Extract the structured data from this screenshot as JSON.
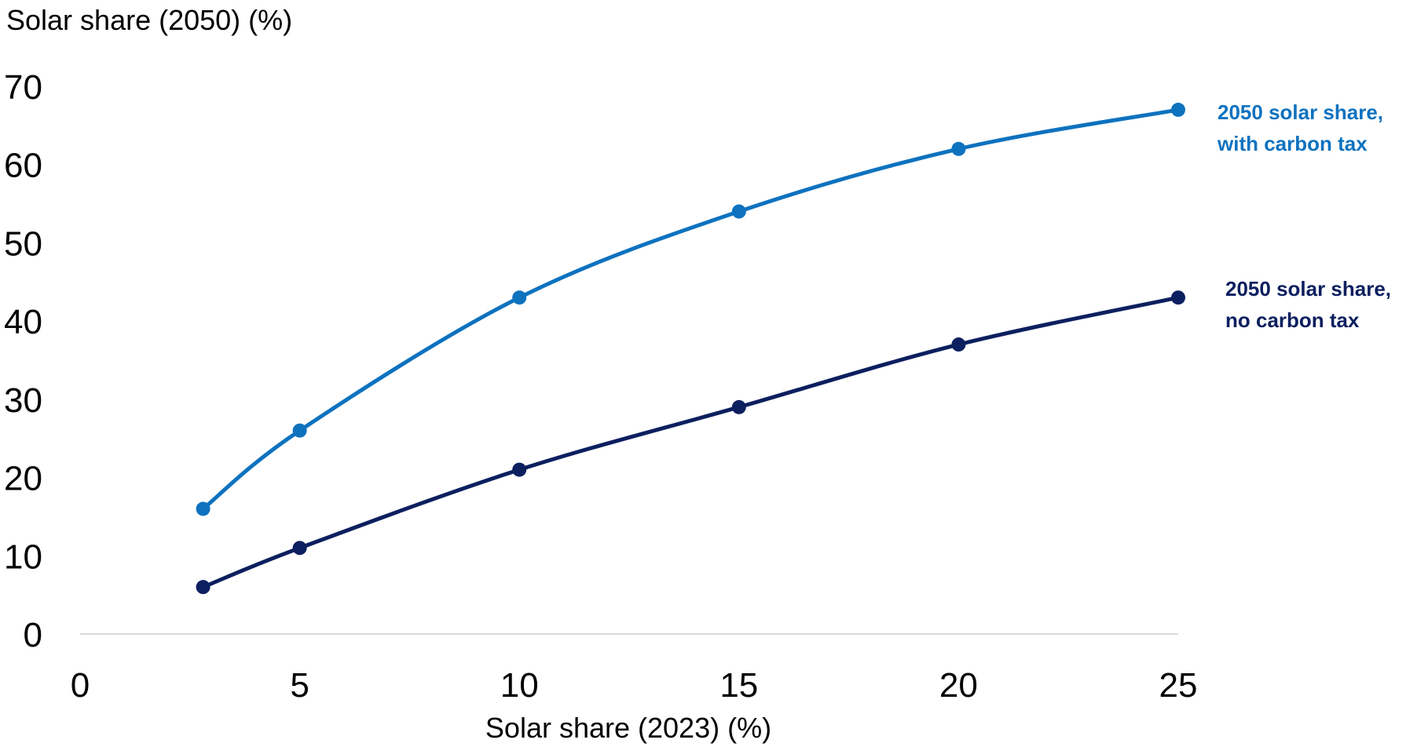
{
  "chart_data": {
    "type": "line",
    "title": "",
    "ylabel": "Solar share (2050) (%)",
    "xlabel": "Solar share (2023) (%)",
    "xlim": [
      0,
      25
    ],
    "ylim": [
      0,
      70
    ],
    "x_ticks": [
      0,
      5,
      10,
      15,
      20,
      25
    ],
    "y_ticks": [
      0,
      10,
      20,
      30,
      40,
      50,
      60,
      70
    ],
    "grid": false,
    "legend": "direct labels at right end of lines",
    "series": [
      {
        "label_lines": [
          "2050 solar share,",
          "with carbon tax"
        ],
        "color": "#0e72bf",
        "points": [
          [
            2.8,
            16
          ],
          [
            5,
            26
          ],
          [
            10,
            43
          ],
          [
            15,
            54
          ],
          [
            20,
            62
          ],
          [
            25,
            67
          ]
        ]
      },
      {
        "label_lines": [
          "2050 solar share,",
          "no carbon tax"
        ],
        "color": "#0c1f5f",
        "points": [
          [
            2.8,
            6
          ],
          [
            5,
            11
          ],
          [
            10,
            21
          ],
          [
            15,
            29
          ],
          [
            20,
            37
          ],
          [
            25,
            43
          ]
        ]
      }
    ]
  }
}
